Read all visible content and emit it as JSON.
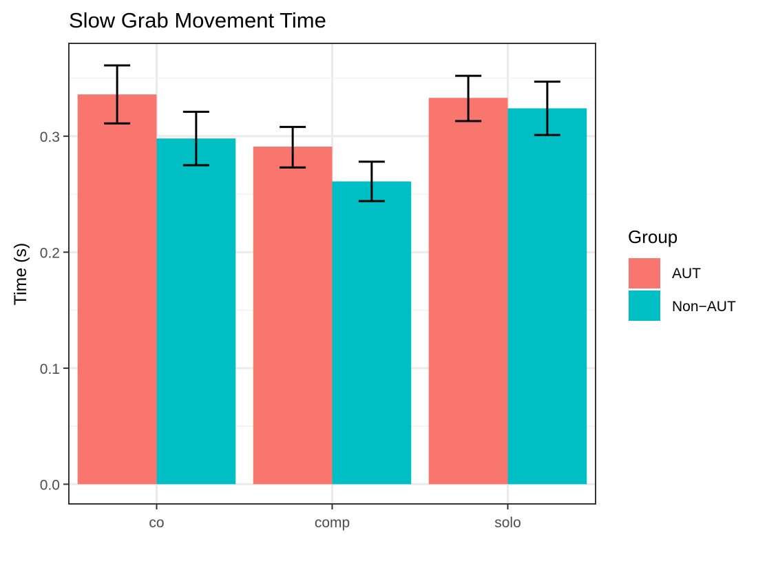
{
  "chart_data": {
    "type": "bar",
    "title": "Slow Grab Movement Time",
    "xlabel": "",
    "ylabel": "Time (s)",
    "categories": [
      "co",
      "comp",
      "solo"
    ],
    "series": [
      {
        "name": "AUT",
        "color": "#F8766D",
        "values": [
          0.336,
          0.291,
          0.333
        ],
        "error_low": [
          0.311,
          0.273,
          0.313
        ],
        "error_high": [
          0.361,
          0.308,
          0.352
        ]
      },
      {
        "name": "Non-AUT",
        "color": "#00BFC4",
        "values": [
          0.298,
          0.261,
          0.324
        ],
        "error_low": [
          0.275,
          0.244,
          0.301
        ],
        "error_high": [
          0.321,
          0.278,
          0.347
        ]
      }
    ],
    "ylim": [
      -0.017,
      0.38
    ],
    "yticks": [
      0.0,
      0.1,
      0.2,
      0.3
    ],
    "ytick_labels": [
      "0.0",
      "0.1",
      "0.2",
      "0.3"
    ],
    "grid": true,
    "legend": {
      "title": "Group",
      "position": "right",
      "entries": [
        "AUT",
        "Non−AUT"
      ]
    }
  }
}
